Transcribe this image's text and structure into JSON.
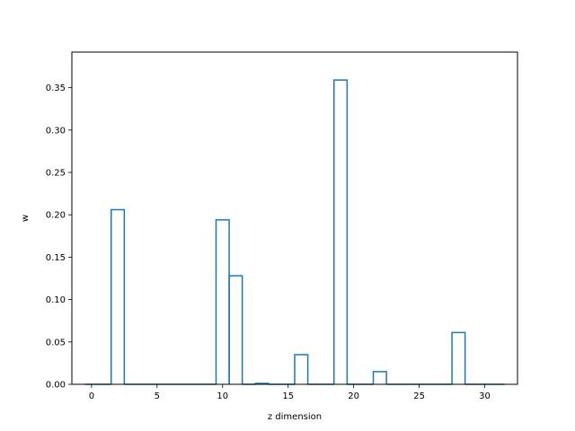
{
  "chart_data": {
    "type": "bar",
    "style": "step",
    "title": "",
    "xlabel": "z dimension",
    "ylabel": "w",
    "xlim": [
      -1.5,
      32.5
    ],
    "ylim": [
      0,
      0.392
    ],
    "xticks": [
      0,
      5,
      10,
      15,
      20,
      25,
      30
    ],
    "xtick_labels": [
      "0",
      "5",
      "10",
      "15",
      "20",
      "25",
      "30"
    ],
    "yticks": [
      0.0,
      0.05,
      0.1,
      0.15,
      0.2,
      0.25,
      0.3,
      0.35
    ],
    "ytick_labels": [
      "0.00",
      "0.05",
      "0.10",
      "0.15",
      "0.20",
      "0.25",
      "0.30",
      "0.35"
    ],
    "grid": false,
    "legend": "none",
    "line_color": "#1f77b4",
    "x": [
      0,
      1,
      2,
      3,
      4,
      5,
      6,
      7,
      8,
      9,
      10,
      11,
      12,
      13,
      14,
      15,
      16,
      17,
      18,
      19,
      20,
      21,
      22,
      23,
      24,
      25,
      26,
      27,
      28,
      29,
      30,
      31
    ],
    "values": [
      0,
      0,
      0.206,
      0,
      0,
      0,
      0,
      0,
      0,
      0,
      0.194,
      0.128,
      0,
      0.001,
      0,
      0,
      0.035,
      0,
      0,
      0.359,
      0,
      0,
      0.015,
      0,
      0,
      0,
      0,
      0,
      0.061,
      0,
      0,
      0
    ]
  }
}
